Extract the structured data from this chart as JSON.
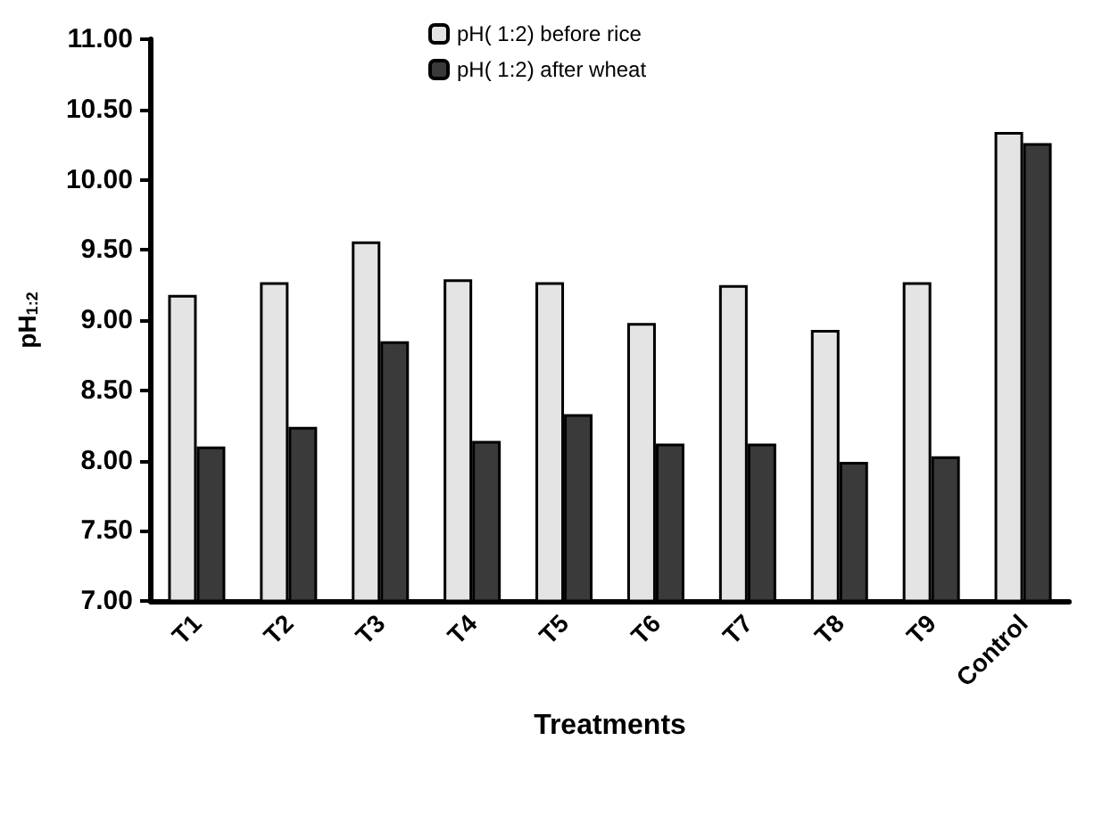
{
  "chart_data": {
    "type": "bar",
    "xlabel": "Treatments",
    "ylabel": "pH$_{1:2}$",
    "categories": [
      "T1",
      "T2",
      "T3",
      "T4",
      "T5",
      "T6",
      "T7",
      "T8",
      "T9",
      "Control"
    ],
    "series": [
      {
        "name": "pH( 1:2) before rice",
        "color": "#e4e4e4",
        "values": [
          9.18,
          9.27,
          9.56,
          9.29,
          9.27,
          8.98,
          9.25,
          8.93,
          9.27,
          10.34
        ]
      },
      {
        "name": "pH( 1:2) after wheat",
        "color": "#3a3a3a",
        "values": [
          8.1,
          8.24,
          8.85,
          8.14,
          8.33,
          8.12,
          8.12,
          7.99,
          8.03,
          10.26
        ]
      }
    ],
    "ylim": [
      7,
      11
    ],
    "yticks": [
      {
        "value": 7,
        "label": "7.00"
      },
      {
        "value": 7.5,
        "label": "7.50"
      },
      {
        "value": 8,
        "label": "8.00"
      },
      {
        "value": 8.5,
        "label": "8.50"
      },
      {
        "value": 9,
        "label": "9.00"
      },
      {
        "value": 9.5,
        "label": "9.50"
      },
      {
        "value": 10,
        "label": "10.00"
      },
      {
        "value": 10.5,
        "label": "10.50"
      },
      {
        "value": 11,
        "label": "11.00"
      }
    ],
    "grid": false,
    "legend": "top"
  }
}
